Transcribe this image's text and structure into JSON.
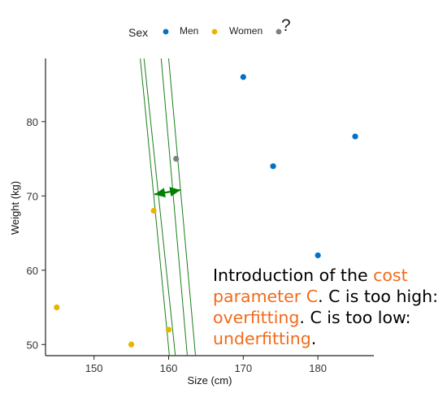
{
  "chart_data": {
    "type": "scatter",
    "xlabel": "Size (cm)",
    "ylabel": "Weight (kg)",
    "xlim": [
      143.5,
      187.5
    ],
    "ylim": [
      48.5,
      88.5
    ],
    "x_ticks": [
      150,
      160,
      170,
      180
    ],
    "y_ticks": [
      50,
      60,
      70,
      80
    ],
    "legend": {
      "placement": "top",
      "title": "Sex",
      "entries": [
        {
          "label": "Men",
          "color": "#0072c6"
        },
        {
          "label": "Women",
          "color": "#e8b400"
        },
        {
          "label": "?",
          "color": "#808080"
        }
      ]
    },
    "series": [
      {
        "name": "Men",
        "color": "#0072c6",
        "points": [
          [
            170,
            86
          ],
          [
            174,
            74
          ],
          [
            180,
            62
          ],
          [
            185,
            78
          ]
        ]
      },
      {
        "name": "Women",
        "color": "#e8b400",
        "points": [
          [
            145,
            55
          ],
          [
            155,
            50
          ],
          [
            158,
            68
          ],
          [
            160,
            52
          ]
        ]
      },
      {
        "name": "?",
        "color": "#808080",
        "points": [
          [
            161,
            75
          ]
        ]
      }
    ],
    "boundary_lines": {
      "color": "#1a7f1a",
      "lines": [
        [
          [
            156.2,
            88.5
          ],
          [
            160.1,
            48.5
          ]
        ],
        [
          [
            159.0,
            88.5
          ],
          [
            162.5,
            48.5
          ]
        ],
        [
          [
            160.0,
            88.5
          ],
          [
            163.6,
            48.5
          ]
        ],
        [
          [
            156.7,
            88.5
          ],
          [
            160.9,
            48.5
          ]
        ]
      ]
    },
    "margin_arrow": {
      "color": "#008000",
      "from": [
        158.1,
        70.2
      ],
      "to": [
        161.6,
        70.8
      ]
    }
  },
  "annotation": {
    "parts": [
      {
        "text": "Introduction of the ",
        "highlight": false
      },
      {
        "text": "cost parameter C",
        "highlight": true
      },
      {
        "text": ". C is too high: ",
        "highlight": false
      },
      {
        "text": "overfitting",
        "highlight": true
      },
      {
        "text": ". C is too low: ",
        "highlight": false
      },
      {
        "text": "underfitting",
        "highlight": true
      },
      {
        "text": ".",
        "highlight": false
      }
    ],
    "highlight_color": "#f26a1b"
  }
}
